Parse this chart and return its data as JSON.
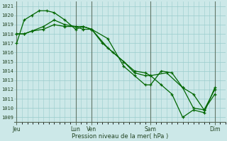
{
  "background_color": "#cce8e8",
  "grid_color": "#99cccc",
  "line_color": "#006600",
  "marker_color": "#006600",
  "ylabel_ticks": [
    1009,
    1010,
    1011,
    1012,
    1013,
    1014,
    1015,
    1016,
    1017,
    1018,
    1019,
    1020,
    1021
  ],
  "ylim": [
    1008.5,
    1021.5
  ],
  "xlabel": "Pression niveau de la mer( hPa )",
  "xtick_labels": [
    "Jeu",
    "Lun",
    "Ven",
    "Sam",
    "Dim"
  ],
  "xtick_positions": [
    0,
    5.5,
    7.0,
    12.5,
    18.5
  ],
  "xlim": [
    -0.2,
    19.5
  ],
  "vline_positions": [
    0,
    5.5,
    7.0,
    12.5,
    18.5
  ],
  "vline_color": "#556655",
  "series1_x": [
    0,
    0.7,
    1.4,
    2.1,
    2.8,
    3.5,
    4.5,
    5.5,
    6.2,
    7.0,
    8.0,
    9.0,
    10.0,
    11.0,
    12.0,
    12.5,
    13.5,
    14.5,
    15.5,
    16.5,
    17.5,
    18.5
  ],
  "series1_y": [
    1017.0,
    1019.5,
    1020.0,
    1020.5,
    1020.5,
    1020.3,
    1019.5,
    1018.5,
    1018.8,
    1018.5,
    1017.0,
    1016.0,
    1015.0,
    1014.0,
    1013.8,
    1013.5,
    1012.5,
    1011.5,
    1009.0,
    1009.8,
    1009.5,
    1012.2
  ],
  "series2_x": [
    0,
    0.7,
    1.4,
    2.5,
    3.5,
    4.5,
    5.5,
    6.2,
    7.0,
    8.5,
    10.0,
    11.0,
    12.0,
    12.5,
    14.0,
    15.5,
    16.5,
    17.5,
    18.5
  ],
  "series2_y": [
    1018.0,
    1018.0,
    1018.3,
    1018.5,
    1019.0,
    1018.8,
    1018.8,
    1018.5,
    1018.5,
    1016.5,
    1015.0,
    1013.8,
    1013.5,
    1013.5,
    1013.8,
    1012.2,
    1011.5,
    1009.8,
    1011.5
  ],
  "series3_x": [
    0,
    0.7,
    1.4,
    2.5,
    3.5,
    4.5,
    5.5,
    6.2,
    7.0,
    8.5,
    10.0,
    11.0,
    12.0,
    12.5,
    13.5,
    14.5,
    15.5,
    16.5,
    17.5,
    18.5
  ],
  "series3_y": [
    1018.0,
    1018.0,
    1018.3,
    1018.8,
    1019.5,
    1019.0,
    1018.8,
    1018.8,
    1018.5,
    1017.5,
    1014.5,
    1013.5,
    1012.5,
    1012.5,
    1014.0,
    1013.8,
    1012.2,
    1010.0,
    1009.8,
    1012.0
  ]
}
